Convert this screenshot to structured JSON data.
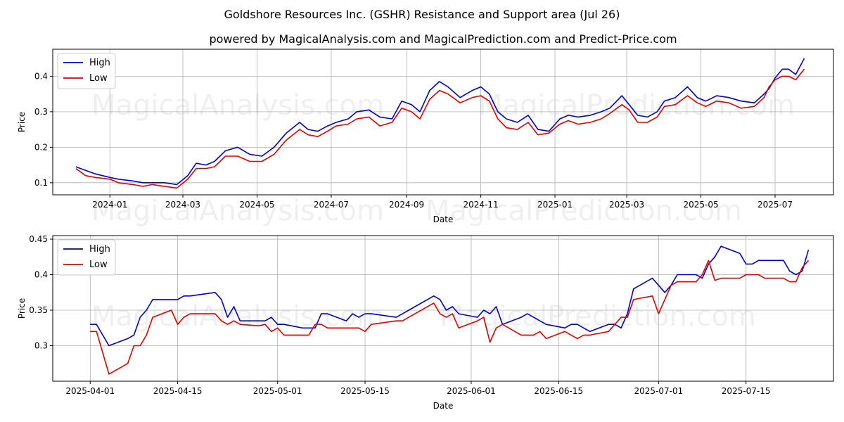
{
  "figure": {
    "title": "Goldshore Resources Inc. (GSHR) Resistance and Support area (Jul 26)",
    "subtitle": "powered by MagicalAnalysis.com and MagicalPrediction.com and Predict-Price.com",
    "watermark1": "MagicalAnalysis.com",
    "watermark2": "MagicalPrediction.com"
  },
  "chart_data": [
    {
      "type": "line",
      "title": "powered by MagicalAnalysis.com and MagicalPrediction.com and Predict-Price.com",
      "xlabel": "Date",
      "ylabel": "Price",
      "xlim": [
        "2023-11-15",
        "2025-08-18"
      ],
      "ylim": [
        0.066,
        0.476
      ],
      "xticks": [
        "2024-01",
        "2024-03",
        "2024-05",
        "2024-07",
        "2024-09",
        "2024-11",
        "2025-01",
        "2025-03",
        "2025-05",
        "2025-07"
      ],
      "yticks": [
        0.1,
        0.2,
        0.3,
        0.4
      ],
      "grid": true,
      "legend": "top-left",
      "colors": {
        "High": "#0000cc",
        "Low": "#dd0000"
      },
      "x": [
        "2023-12-04",
        "2023-12-12",
        "2023-12-20",
        "2024-01-01",
        "2024-01-08",
        "2024-01-20",
        "2024-01-28",
        "2024-02-05",
        "2024-02-15",
        "2024-02-25",
        "2024-03-05",
        "2024-03-12",
        "2024-03-20",
        "2024-03-27",
        "2024-04-05",
        "2024-04-15",
        "2024-04-25",
        "2024-05-05",
        "2024-05-15",
        "2024-05-25",
        "2024-06-05",
        "2024-06-12",
        "2024-06-20",
        "2024-06-28",
        "2024-07-05",
        "2024-07-15",
        "2024-07-22",
        "2024-08-01",
        "2024-08-10",
        "2024-08-20",
        "2024-08-28",
        "2024-09-05",
        "2024-09-12",
        "2024-09-20",
        "2024-09-28",
        "2024-10-05",
        "2024-10-15",
        "2024-10-25",
        "2024-11-01",
        "2024-11-08",
        "2024-11-15",
        "2024-11-22",
        "2024-12-01",
        "2024-12-10",
        "2024-12-18",
        "2024-12-27",
        "2025-01-05",
        "2025-01-12",
        "2025-01-20",
        "2025-01-30",
        "2025-02-08",
        "2025-02-15",
        "2025-02-25",
        "2025-03-03",
        "2025-03-10",
        "2025-03-18",
        "2025-03-26",
        "2025-04-01",
        "2025-04-10",
        "2025-04-20",
        "2025-04-28",
        "2025-05-05",
        "2025-05-14",
        "2025-05-24",
        "2025-06-03",
        "2025-06-14",
        "2025-06-22",
        "2025-06-26",
        "2025-07-01",
        "2025-07-07",
        "2025-07-12",
        "2025-07-18",
        "2025-07-25"
      ],
      "series": [
        {
          "name": "High",
          "values": [
            0.145,
            0.135,
            0.125,
            0.115,
            0.11,
            0.105,
            0.1,
            0.1,
            0.1,
            0.095,
            0.12,
            0.155,
            0.15,
            0.16,
            0.19,
            0.2,
            0.18,
            0.175,
            0.2,
            0.24,
            0.27,
            0.25,
            0.245,
            0.26,
            0.27,
            0.28,
            0.3,
            0.305,
            0.285,
            0.28,
            0.33,
            0.32,
            0.3,
            0.36,
            0.385,
            0.37,
            0.34,
            0.36,
            0.37,
            0.35,
            0.3,
            0.28,
            0.27,
            0.29,
            0.25,
            0.245,
            0.28,
            0.29,
            0.285,
            0.29,
            0.3,
            0.31,
            0.345,
            0.32,
            0.29,
            0.285,
            0.3,
            0.33,
            0.34,
            0.37,
            0.34,
            0.33,
            0.345,
            0.34,
            0.33,
            0.325,
            0.35,
            0.365,
            0.395,
            0.42,
            0.42,
            0.405,
            0.45
          ]
        },
        {
          "name": "Low",
          "values": [
            0.14,
            0.12,
            0.115,
            0.11,
            0.1,
            0.095,
            0.09,
            0.095,
            0.09,
            0.085,
            0.11,
            0.14,
            0.14,
            0.145,
            0.175,
            0.175,
            0.16,
            0.16,
            0.18,
            0.22,
            0.25,
            0.235,
            0.23,
            0.245,
            0.26,
            0.265,
            0.28,
            0.285,
            0.26,
            0.27,
            0.31,
            0.3,
            0.28,
            0.335,
            0.36,
            0.35,
            0.325,
            0.34,
            0.345,
            0.33,
            0.28,
            0.255,
            0.25,
            0.27,
            0.235,
            0.24,
            0.265,
            0.275,
            0.265,
            0.27,
            0.28,
            0.295,
            0.32,
            0.305,
            0.27,
            0.27,
            0.285,
            0.315,
            0.32,
            0.345,
            0.325,
            0.315,
            0.33,
            0.325,
            0.31,
            0.315,
            0.34,
            0.37,
            0.39,
            0.4,
            0.4,
            0.39,
            0.42
          ]
        }
      ]
    },
    {
      "type": "line",
      "xlabel": "Date",
      "ylabel": "Price",
      "xlim": [
        "2025-03-26",
        "2025-07-29"
      ],
      "ylim": [
        0.25,
        0.455
      ],
      "xticks": [
        "2025-04-01",
        "2025-04-15",
        "2025-05-01",
        "2025-05-15",
        "2025-06-01",
        "2025-06-15",
        "2025-07-01",
        "2025-07-15"
      ],
      "yticks": [
        0.3,
        0.35,
        0.4,
        0.45
      ],
      "grid": true,
      "legend": "top-left",
      "colors": {
        "High": "#0000cc",
        "Low": "#dd0000"
      },
      "x": [
        "2025-04-01",
        "2025-04-02",
        "2025-04-04",
        "2025-04-07",
        "2025-04-08",
        "2025-04-09",
        "2025-04-10",
        "2025-04-11",
        "2025-04-14",
        "2025-04-15",
        "2025-04-16",
        "2025-04-17",
        "2025-04-21",
        "2025-04-22",
        "2025-04-23",
        "2025-04-24",
        "2025-04-25",
        "2025-04-28",
        "2025-04-29",
        "2025-04-30",
        "2025-05-01",
        "2025-05-02",
        "2025-05-05",
        "2025-05-06",
        "2025-05-07",
        "2025-05-08",
        "2025-05-09",
        "2025-05-12",
        "2025-05-13",
        "2025-05-14",
        "2025-05-15",
        "2025-05-16",
        "2025-05-20",
        "2025-05-21",
        "2025-05-22",
        "2025-05-26",
        "2025-05-27",
        "2025-05-28",
        "2025-05-29",
        "2025-05-30",
        "2025-06-02",
        "2025-06-03",
        "2025-06-04",
        "2025-06-05",
        "2025-06-06",
        "2025-06-09",
        "2025-06-10",
        "2025-06-11",
        "2025-06-12",
        "2025-06-13",
        "2025-06-16",
        "2025-06-17",
        "2025-06-18",
        "2025-06-19",
        "2025-06-20",
        "2025-06-23",
        "2025-06-24",
        "2025-06-25",
        "2025-06-26",
        "2025-06-27",
        "2025-06-30",
        "2025-07-01",
        "2025-07-02",
        "2025-07-03",
        "2025-07-04",
        "2025-07-07",
        "2025-07-08",
        "2025-07-09",
        "2025-07-10",
        "2025-07-11",
        "2025-07-14",
        "2025-07-15",
        "2025-07-16",
        "2025-07-17",
        "2025-07-18",
        "2025-07-21",
        "2025-07-22",
        "2025-07-23",
        "2025-07-24",
        "2025-07-25"
      ],
      "series": [
        {
          "name": "High",
          "values": [
            0.33,
            0.33,
            0.3,
            0.31,
            0.315,
            0.34,
            0.35,
            0.365,
            0.365,
            0.365,
            0.37,
            0.37,
            0.375,
            0.365,
            0.34,
            0.355,
            0.335,
            0.335,
            0.335,
            0.34,
            0.33,
            0.33,
            0.325,
            0.325,
            0.325,
            0.345,
            0.345,
            0.335,
            0.345,
            0.34,
            0.345,
            0.345,
            0.34,
            0.345,
            0.35,
            0.37,
            0.365,
            0.35,
            0.355,
            0.345,
            0.34,
            0.35,
            0.345,
            0.355,
            0.33,
            0.34,
            0.345,
            0.34,
            0.335,
            0.33,
            0.325,
            0.33,
            0.33,
            0.325,
            0.32,
            0.33,
            0.33,
            0.325,
            0.345,
            0.38,
            0.395,
            0.385,
            0.375,
            0.385,
            0.4,
            0.4,
            0.395,
            0.415,
            0.425,
            0.44,
            0.43,
            0.415,
            0.415,
            0.42,
            0.42,
            0.42,
            0.405,
            0.4,
            0.405,
            0.435
          ]
        },
        {
          "name": "Low",
          "values": [
            0.32,
            0.32,
            0.26,
            0.275,
            0.3,
            0.3,
            0.315,
            0.34,
            0.35,
            0.33,
            0.34,
            0.345,
            0.345,
            0.335,
            0.33,
            0.335,
            0.33,
            0.328,
            0.33,
            0.32,
            0.325,
            0.315,
            0.315,
            0.315,
            0.33,
            0.33,
            0.325,
            0.325,
            0.325,
            0.325,
            0.32,
            0.33,
            0.335,
            0.335,
            0.34,
            0.36,
            0.345,
            0.34,
            0.345,
            0.325,
            0.335,
            0.34,
            0.305,
            0.325,
            0.33,
            0.315,
            0.315,
            0.315,
            0.32,
            0.31,
            0.32,
            0.315,
            0.31,
            0.315,
            0.315,
            0.32,
            0.33,
            0.34,
            0.34,
            0.365,
            0.37,
            0.345,
            0.365,
            0.385,
            0.39,
            0.39,
            0.4,
            0.42,
            0.392,
            0.395,
            0.395,
            0.4,
            0.4,
            0.4,
            0.395,
            0.395,
            0.39,
            0.39,
            0.41,
            0.42
          ]
        }
      ]
    }
  ]
}
